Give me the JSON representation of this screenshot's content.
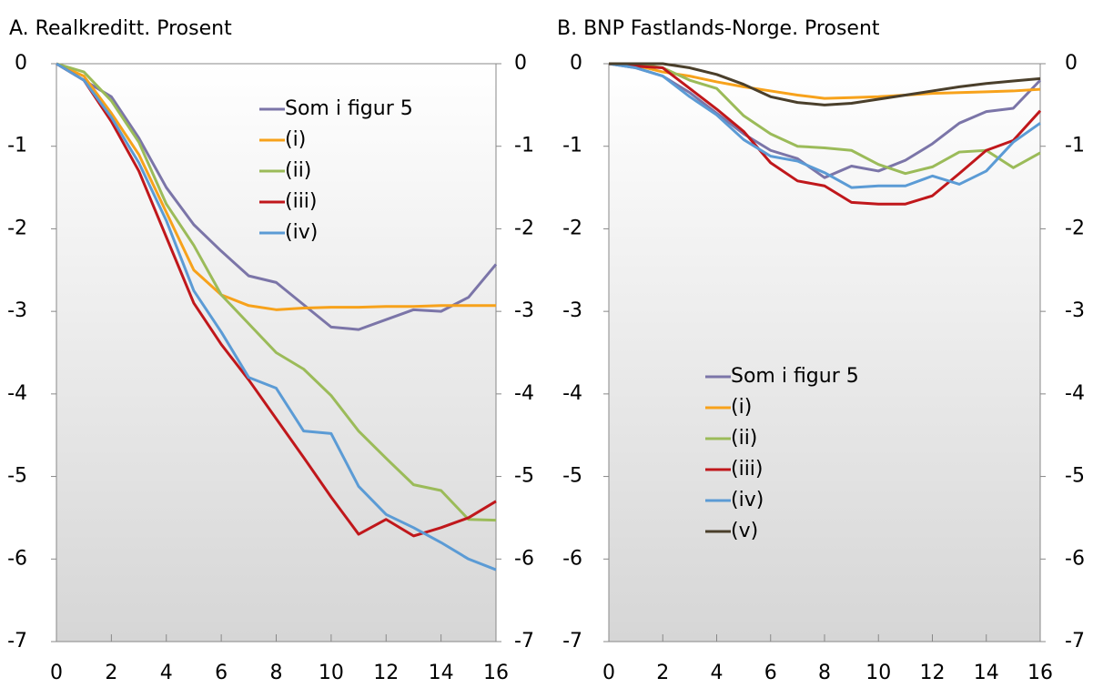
{
  "chart_data": [
    {
      "type": "line",
      "title": "A. Realkreditt. Prosent",
      "x": [
        0,
        1,
        2,
        3,
        4,
        5,
        6,
        7,
        8,
        9,
        10,
        11,
        12,
        13,
        14,
        15,
        16
      ],
      "xlim": [
        0,
        16
      ],
      "xticks": [
        0,
        2,
        4,
        6,
        8,
        10,
        12,
        14,
        16
      ],
      "ylim": [
        -7,
        0
      ],
      "yticks": [
        0,
        -1,
        -2,
        -3,
        -4,
        -5,
        -6,
        -7
      ],
      "legend": "upper right",
      "series": [
        {
          "name": "Som i figur 5",
          "color": "#7b75a8",
          "values": [
            0,
            -0.2,
            -0.4,
            -0.9,
            -1.5,
            -1.95,
            -2.27,
            -2.57,
            -2.65,
            -2.92,
            -3.19,
            -3.22,
            -3.1,
            -2.98,
            -3.0,
            -2.83,
            -2.43
          ]
        },
        {
          "name": "(i)",
          "color": "#f7a21b",
          "values": [
            0,
            -0.15,
            -0.6,
            -1.1,
            -1.8,
            -2.5,
            -2.8,
            -2.93,
            -2.98,
            -2.96,
            -2.95,
            -2.95,
            -2.94,
            -2.94,
            -2.93,
            -2.93,
            -2.93
          ]
        },
        {
          "name": "(ii)",
          "color": "#9bbb59",
          "values": [
            0,
            -0.1,
            -0.45,
            -0.95,
            -1.7,
            -2.2,
            -2.8,
            -3.15,
            -3.5,
            -3.7,
            -4.02,
            -4.45,
            -4.78,
            -5.1,
            -5.17,
            -5.52,
            -5.53
          ]
        },
        {
          "name": "(iii)",
          "color": "#c0171b",
          "values": [
            0,
            -0.2,
            -0.7,
            -1.3,
            -2.1,
            -2.9,
            -3.4,
            -3.83,
            -4.3,
            -4.77,
            -5.25,
            -5.7,
            -5.52,
            -5.72,
            -5.62,
            -5.5,
            -5.3
          ]
        },
        {
          "name": "(iv)",
          "color": "#5b9bd5",
          "values": [
            0,
            -0.2,
            -0.65,
            -1.2,
            -1.9,
            -2.75,
            -3.25,
            -3.8,
            -3.93,
            -4.45,
            -4.48,
            -5.12,
            -5.46,
            -5.62,
            -5.8,
            -6.0,
            -6.13
          ]
        }
      ]
    },
    {
      "type": "line",
      "title": "B. BNP Fastlands-Norge. Prosent",
      "x": [
        0,
        1,
        2,
        3,
        4,
        5,
        6,
        7,
        8,
        9,
        10,
        11,
        12,
        13,
        14,
        15,
        16
      ],
      "xlim": [
        0,
        16
      ],
      "xticks": [
        0,
        2,
        4,
        6,
        8,
        10,
        12,
        14,
        16
      ],
      "ylim": [
        -7,
        0
      ],
      "yticks": [
        0,
        -1,
        -2,
        -3,
        -4,
        -5,
        -6,
        -7
      ],
      "legend": "lower center",
      "series": [
        {
          "name": "Som i figur 5",
          "color": "#7b75a8",
          "values": [
            0,
            -0.05,
            -0.15,
            -0.35,
            -0.6,
            -0.85,
            -1.05,
            -1.15,
            -1.38,
            -1.24,
            -1.3,
            -1.17,
            -0.97,
            -0.72,
            -0.58,
            -0.54,
            -0.2
          ]
        },
        {
          "name": "(i)",
          "color": "#f7a21b",
          "values": [
            0,
            -0.02,
            -0.1,
            -0.15,
            -0.22,
            -0.28,
            -0.33,
            -0.38,
            -0.42,
            -0.41,
            -0.4,
            -0.38,
            -0.36,
            -0.35,
            -0.34,
            -0.33,
            -0.31
          ]
        },
        {
          "name": "(ii)",
          "color": "#9bbb59",
          "values": [
            0,
            0,
            -0.05,
            -0.2,
            -0.3,
            -0.63,
            -0.85,
            -1.0,
            -1.02,
            -1.05,
            -1.22,
            -1.33,
            -1.25,
            -1.07,
            -1.05,
            -1.26,
            -1.08
          ]
        },
        {
          "name": "(iii)",
          "color": "#c0171b",
          "values": [
            0,
            -0.03,
            -0.05,
            -0.3,
            -0.55,
            -0.82,
            -1.2,
            -1.42,
            -1.48,
            -1.68,
            -1.7,
            -1.7,
            -1.6,
            -1.33,
            -1.05,
            -0.93,
            -0.57
          ]
        },
        {
          "name": "(iv)",
          "color": "#5b9bd5",
          "values": [
            0,
            -0.05,
            -0.15,
            -0.4,
            -0.62,
            -0.92,
            -1.12,
            -1.18,
            -1.32,
            -1.5,
            -1.48,
            -1.48,
            -1.36,
            -1.46,
            -1.3,
            -0.95,
            -0.72
          ]
        },
        {
          "name": "(v)",
          "color": "#4a3f2b",
          "values": [
            0,
            0,
            0,
            -0.05,
            -0.13,
            -0.25,
            -0.4,
            -0.47,
            -0.5,
            -0.48,
            -0.43,
            -0.38,
            -0.33,
            -0.28,
            -0.24,
            -0.21,
            -0.18
          ]
        }
      ]
    }
  ]
}
